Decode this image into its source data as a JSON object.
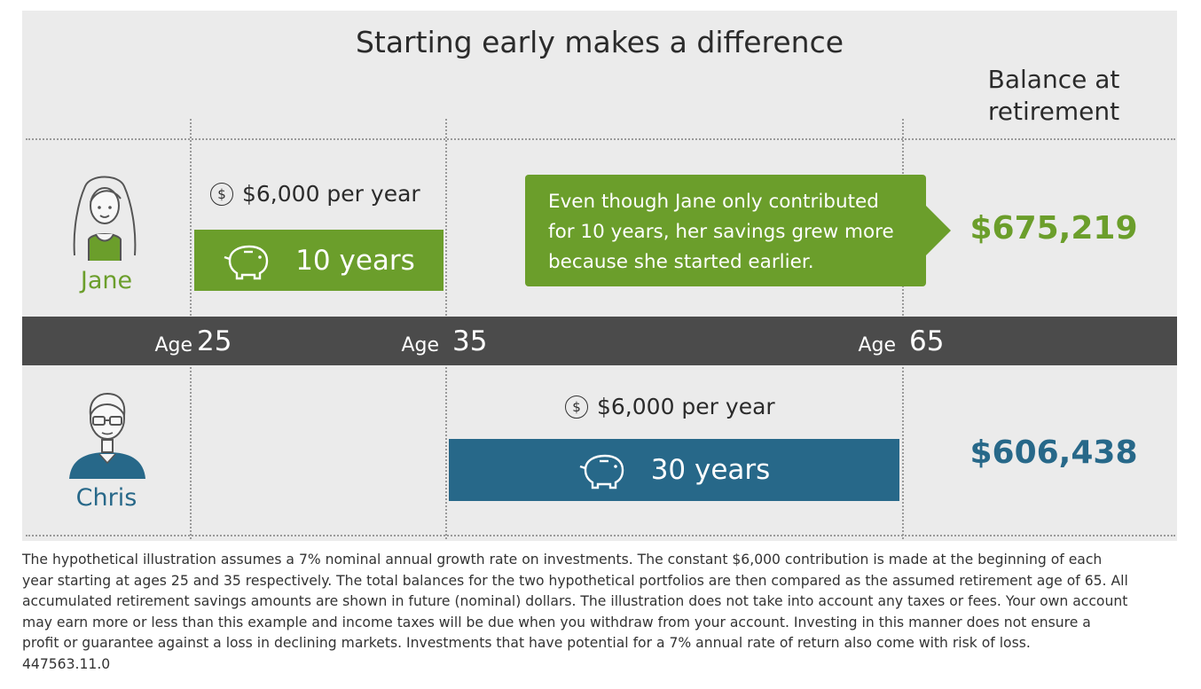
{
  "title": "Starting early makes a difference",
  "balance_header": [
    "Balance at",
    "retirement"
  ],
  "colors": {
    "green": "#6b9e2b",
    "blue": "#276889",
    "band": "#4b4b4b",
    "panel": "#ebebeb"
  },
  "ages": [
    {
      "word": "Age",
      "number": "25"
    },
    {
      "word": "Age",
      "number": "35"
    },
    {
      "word": "Age",
      "number": "65"
    }
  ],
  "jane": {
    "name": "Jane",
    "contribution": "$6,000 per year",
    "duration": "10 years",
    "balance": "$675,219",
    "callout": [
      "Even though Jane only contributed",
      "for 10 years, her savings grew more",
      "because she started earlier."
    ]
  },
  "chris": {
    "name": "Chris",
    "contribution": "$6,000 per year",
    "duration": "30 years",
    "balance": "$606,438"
  },
  "icons": {
    "coin": "dollar-coin-icon",
    "piggy": "piggy-bank-icon",
    "jane": "woman-avatar-icon",
    "chris": "man-avatar-icon"
  },
  "coin_symbol": "$",
  "footnote": {
    "lines": [
      "The hypothetical illustration assumes a 7% nominal annual growth rate on investments. The constant $6,000 contribution is made at the beginning of each",
      "year starting at ages 25 and 35 respectively. The total balances for the two hypothetical portfolios are then compared as the assumed retirement age of 65. All",
      "accumulated retirement savings amounts are shown in future (nominal) dollars. The illustration does not take into account any taxes or fees. Your own account",
      "may earn more or less than this example and income taxes will be due when you withdraw from your account. Investing in this manner does not ensure a",
      "profit or guarantee against a loss in declining markets. Investments that have potential for a 7% annual rate of return also come with risk of loss."
    ],
    "code": "447563.11.0"
  }
}
